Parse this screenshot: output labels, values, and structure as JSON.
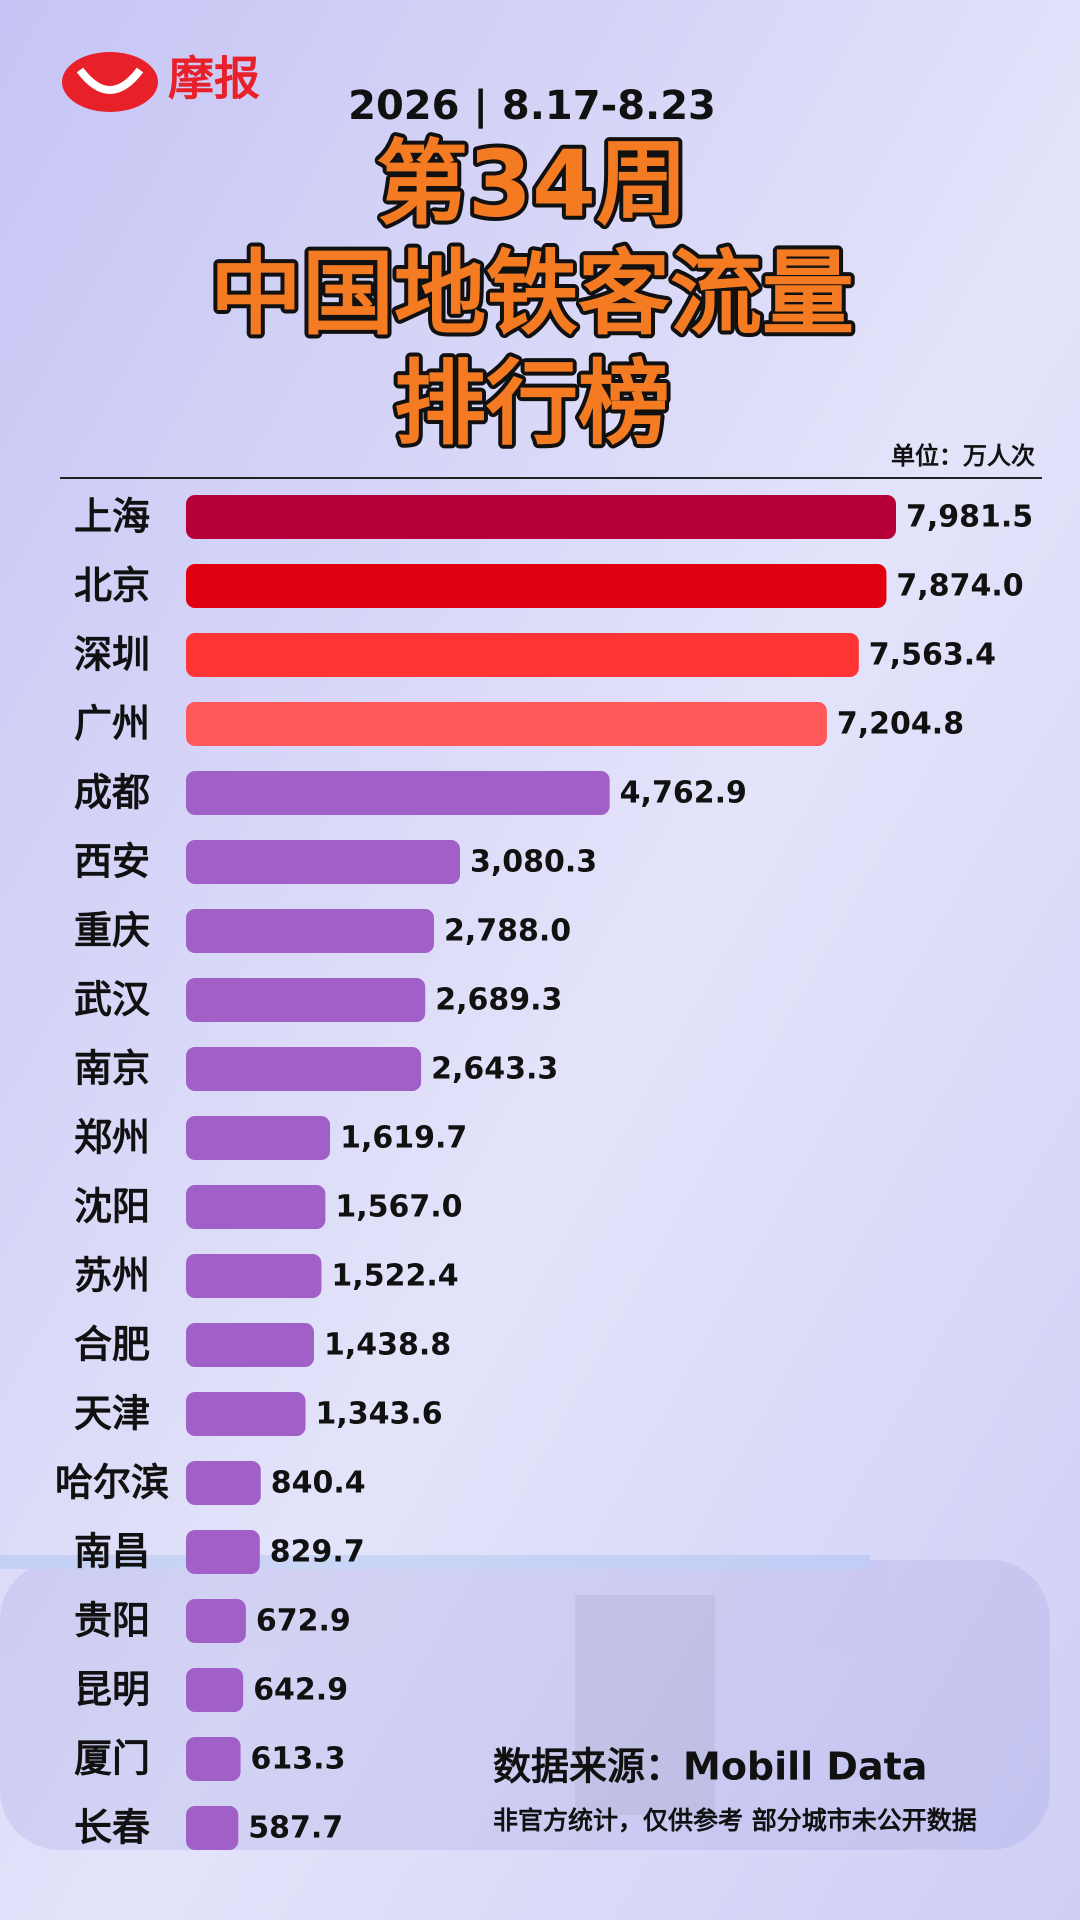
{
  "brand": "摩报",
  "chart_data": {
    "type": "bar",
    "orientation": "horizontal",
    "date": "2026 | 8.17-8.23",
    "title_lines": [
      "第34周",
      "中国地铁客流量",
      "排行榜"
    ],
    "unit": "单位：万人次",
    "categories": [
      "上海",
      "北京",
      "深圳",
      "广州",
      "成都",
      "西安",
      "重庆",
      "武汉",
      "南京",
      "郑州",
      "沈阳",
      "苏州",
      "合肥",
      "天津",
      "哈尔滨",
      "南昌",
      "贵阳",
      "昆明",
      "厦门",
      "长春"
    ],
    "values": [
      7981.5,
      7874.0,
      7563.4,
      7204.8,
      4762.9,
      3080.3,
      2788.0,
      2689.3,
      2643.3,
      1619.7,
      1567.0,
      1522.4,
      1438.8,
      1343.6,
      840.4,
      829.7,
      672.9,
      642.9,
      613.3,
      587.7
    ],
    "value_labels": [
      "7,981.5",
      "7,874.0",
      "7,563.4",
      "7,204.8",
      "4,762.9",
      "3,080.3",
      "2,788.0",
      "2,689.3",
      "2,643.3",
      "1,619.7",
      "1,567.0",
      "1,522.4",
      "1,438.8",
      "1,343.6",
      "840.4",
      "829.7",
      "672.9",
      "642.9",
      "613.3",
      "587.7"
    ],
    "colors": [
      "#b5003a",
      "#e00010",
      "#ff3535",
      "#ff5858",
      "#a15fc8",
      "#a15fc8",
      "#a15fc8",
      "#a15fc8",
      "#a15fc8",
      "#a15fc8",
      "#a15fc8",
      "#a15fc8",
      "#a15fc8",
      "#a15fc8",
      "#a15fc8",
      "#a15fc8",
      "#a15fc8",
      "#a15fc8",
      "#a15fc8",
      "#a15fc8"
    ],
    "source": "数据来源：Mobill Data",
    "note": "非官方统计，仅供参考   部分城市未公开数据"
  }
}
